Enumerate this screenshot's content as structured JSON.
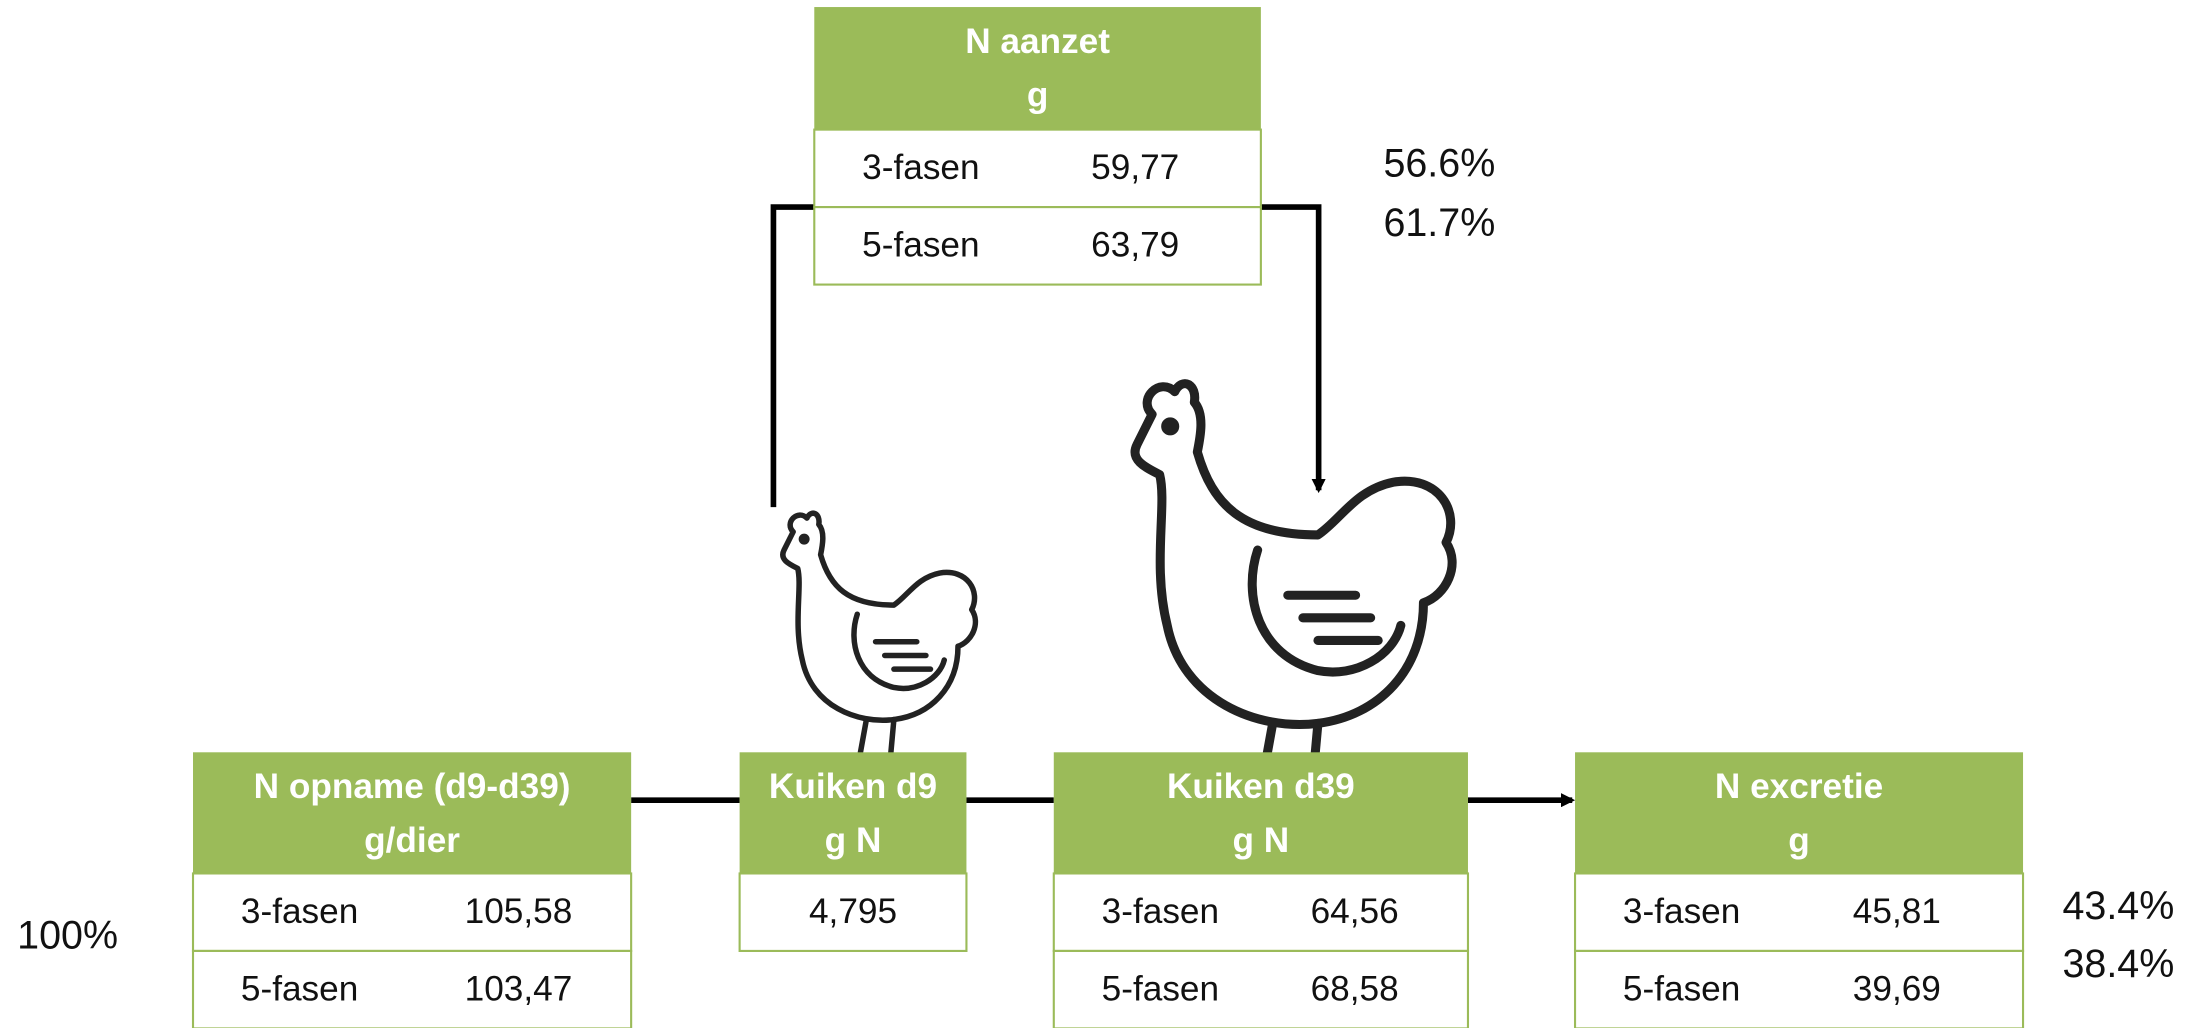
{
  "boxes": [
    {
      "title": [
        "N aanzet",
        "g"
      ],
      "rows": [
        [
          "3-fasen",
          "59,77"
        ],
        [
          "5-fasen",
          "63,79"
        ]
      ]
    },
    {
      "title": [
        "N opname (d9-d39)",
        "g/dier"
      ],
      "rows": [
        [
          "3-fasen",
          "105,58"
        ],
        [
          "5-fasen",
          "103,47"
        ]
      ]
    },
    {
      "title": [
        "Kuiken d9",
        "g N"
      ],
      "rows": [
        [
          "4,795"
        ]
      ]
    },
    {
      "title": [
        "Kuiken d39",
        "g N"
      ],
      "rows": [
        [
          "3-fasen",
          "64,56"
        ],
        [
          "5-fasen",
          "68,58"
        ]
      ]
    },
    {
      "title": [
        "N excretie",
        "g"
      ],
      "rows": [
        [
          "3-fasen",
          "45,81"
        ],
        [
          "5-fasen",
          "39,69"
        ]
      ]
    }
  ],
  "percentages": {
    "intake": "100%",
    "retention": [
      "56.6%",
      "61.7%"
    ],
    "excretion": [
      "43.4%",
      "38.4%"
    ]
  }
}
